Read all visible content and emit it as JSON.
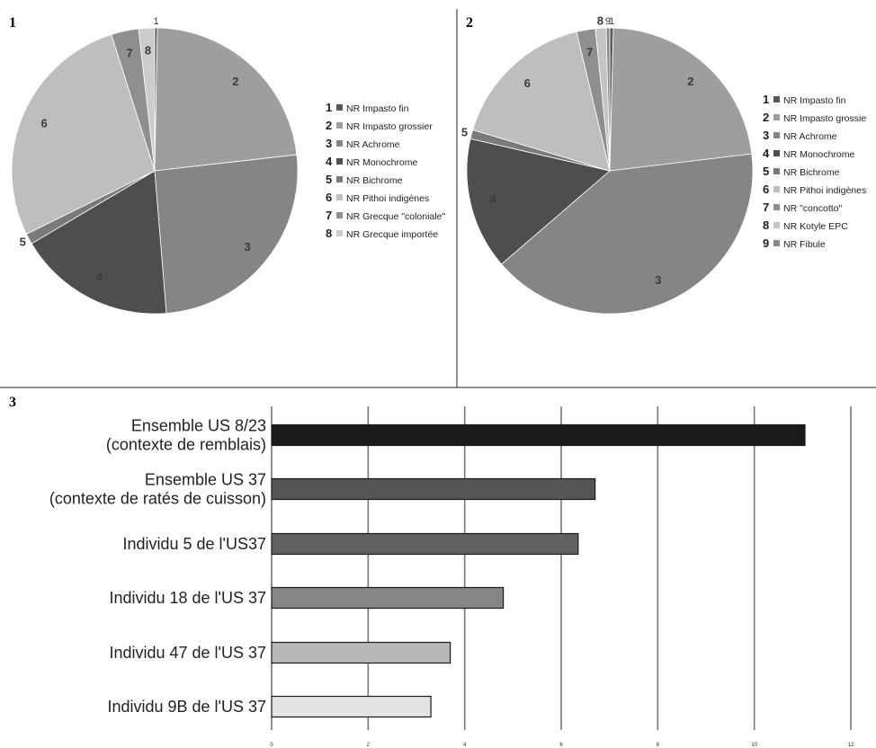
{
  "panels": [
    "1",
    "2",
    "3"
  ],
  "chart_data": [
    {
      "type": "pie",
      "panel": "1",
      "categories": [
        "1",
        "2",
        "3",
        "4",
        "5",
        "6",
        "7",
        "8"
      ],
      "legend": [
        "NR Impasto fin",
        "NR Impasto grossier",
        "NR Achrome",
        "NR Monochrome",
        "NR Bichrome",
        "NR Pithoi indigènes",
        "NR Grecque \"coloniale\"",
        "NR Grecque importée"
      ],
      "values": [
        0.3,
        22.9,
        25.5,
        17.8,
        1.2,
        27.4,
        3.1,
        1.8
      ],
      "colors": [
        "#585858",
        "#9e9e9e",
        "#858585",
        "#4e4e4e",
        "#7a7a7a",
        "#bebebe",
        "#8f8f8f",
        "#cccccc"
      ],
      "title": "",
      "xlabel": "",
      "ylabel": ""
    },
    {
      "type": "pie",
      "panel": "2",
      "categories": [
        "1",
        "2",
        "3",
        "4",
        "5",
        "6",
        "7",
        "8",
        "9"
      ],
      "legend": [
        "NR Impasto fin",
        "NR Impasto grossie",
        "NR Achrome",
        "NR Monochrome",
        "NR Bichrome",
        "NR Pithoi indigènes",
        "NR \"concotto\"",
        "NR Kotyle EPC",
        "NR Fibule"
      ],
      "values": [
        0.4,
        22.5,
        40.2,
        14.8,
        1.0,
        16.5,
        2.1,
        1.2,
        0.4
      ],
      "colors": [
        "#585858",
        "#9e9e9e",
        "#858585",
        "#4e4e4e",
        "#7a7a7a",
        "#bebebe",
        "#8f8f8f",
        "#c4c4c4",
        "#8a8a8a"
      ],
      "title": "",
      "xlabel": "",
      "ylabel": ""
    },
    {
      "type": "bar",
      "orientation": "horizontal",
      "panel": "3",
      "categories": [
        "Ensemble US 8/23\n(contexte de remblais)",
        "Ensemble US 37\n(contexte de ratés de cuisson)",
        "Individu 5 de l'US37",
        "Individu 18 de l'US 37",
        "Individu 47 de l'US 37",
        "Individu 9B de l'US 37"
      ],
      "values": [
        11.05,
        6.7,
        6.35,
        4.8,
        3.7,
        3.3
      ],
      "colors": [
        "#1a1a1a",
        "#555555",
        "#616161",
        "#868686",
        "#b8b8b8",
        "#e3e3e3"
      ],
      "xlim": [
        0,
        12
      ],
      "xticks": [
        0,
        2,
        4,
        6,
        8,
        10,
        12
      ],
      "grid": true,
      "title": "",
      "xlabel": "",
      "ylabel": ""
    }
  ]
}
